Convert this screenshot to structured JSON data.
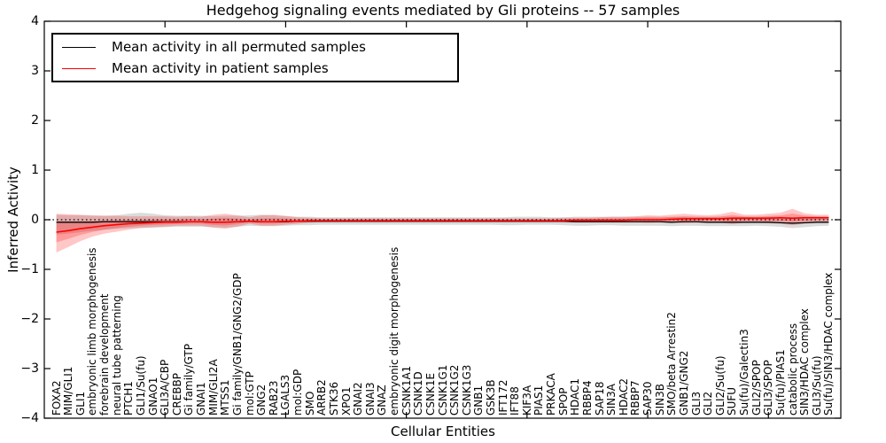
{
  "figure": {
    "title": "Hedgehog signaling events mediated by Gli proteins -- 57 samples",
    "xlabel": "Cellular Entities",
    "ylabel": "Inferred Activity"
  },
  "legend": {
    "items": [
      {
        "label": "Mean activity in all permuted samples",
        "color": "#000000"
      },
      {
        "label": "Mean activity in patient samples",
        "color": "#ff0000"
      }
    ],
    "position": "upper left"
  },
  "chart_data": {
    "type": "line",
    "title": "Hedgehog signaling events mediated by Gli proteins -- 57 samples",
    "xlabel": "Cellular Entities",
    "ylabel": "Inferred Activity",
    "ylim": [
      -4,
      4
    ],
    "yticks": [
      -4,
      -3,
      -2,
      -1,
      0,
      1,
      2,
      3,
      4
    ],
    "xticks": [
      10,
      20,
      30,
      40,
      50,
      60
    ],
    "grid": false,
    "zero_line": {
      "style": "dotted",
      "color": "#000000",
      "value": 0
    },
    "legend_position": "upper left",
    "categories": [
      "FOXA2",
      "MIM/GLI1",
      "GLI1",
      "embryonic limb morphogenesis",
      "forebrain development",
      "neural tube patterning",
      "PTCH1",
      "GLI1/Su(fu)",
      "GNAO1",
      "GLI3A/CBP",
      "CREBBP",
      "Gi family/GTP",
      "GNAI1",
      "MIM/GLI2A",
      "MTSS1",
      "Gi family/GNB1/GNG2/GDP",
      "mol:GTP",
      "GNG2",
      "RAB23",
      "LGALS3",
      "mol:GDP",
      "SMO",
      "ARRB2",
      "STK36",
      "XPO1",
      "GNAI2",
      "GNAI3",
      "GNAZ",
      "embryonic digit morphogenesis",
      "CSNK1A1",
      "CSNK1D",
      "CSNK1E",
      "CSNK1G1",
      "CSNK1G2",
      "CSNK1G3",
      "GNB1",
      "GSK3B",
      "IFT172",
      "IFT88",
      "KIF3A",
      "PIAS1",
      "PRKACA",
      "SPOP",
      "HDAC1",
      "RBBP4",
      "SAP18",
      "SIN3A",
      "HDAC2",
      "RBBP7",
      "SAP30",
      "SIN3B",
      "SMO/beta Arrestin2",
      "GNB1/GNG2",
      "GLI3",
      "GLI2",
      "GLI2/Su(fu)",
      "SUFU",
      "Su(fu)/Galectin3",
      "GLI2/SPOP",
      "GLI3/SPOP",
      "Su(fu)/PIAS1",
      "catabolic process",
      "SIN3/HDAC complex",
      "GLI3/Su(fu)",
      "Su(fu)/SIN3/HDAC complex"
    ],
    "series": [
      {
        "name": "Mean activity in all permuted samples",
        "color": "#000000",
        "line_width": 1.3,
        "band_color": "rgba(110,110,110,0.25)",
        "values": [
          -0.05,
          -0.05,
          -0.05,
          -0.05,
          -0.04,
          -0.04,
          -0.04,
          -0.04,
          -0.04,
          -0.04,
          -0.04,
          -0.04,
          -0.04,
          -0.05,
          -0.05,
          -0.04,
          -0.03,
          -0.04,
          -0.04,
          -0.04,
          -0.03,
          -0.03,
          -0.03,
          -0.03,
          -0.03,
          -0.03,
          -0.03,
          -0.03,
          -0.03,
          -0.03,
          -0.03,
          -0.03,
          -0.03,
          -0.03,
          -0.03,
          -0.03,
          -0.03,
          -0.03,
          -0.03,
          -0.03,
          -0.03,
          -0.03,
          -0.03,
          -0.04,
          -0.04,
          -0.04,
          -0.04,
          -0.04,
          -0.04,
          -0.04,
          -0.04,
          -0.05,
          -0.04,
          -0.04,
          -0.05,
          -0.05,
          -0.05,
          -0.05,
          -0.05,
          -0.05,
          -0.06,
          -0.07,
          -0.06,
          -0.05,
          -0.05
        ],
        "band_upper": [
          0.1,
          0.09,
          0.09,
          0.08,
          0.08,
          0.09,
          0.12,
          0.14,
          0.12,
          0.09,
          0.08,
          0.08,
          0.08,
          0.07,
          0.08,
          0.08,
          0.09,
          0.1,
          0.09,
          0.07,
          0.06,
          0.06,
          0.05,
          0.05,
          0.05,
          0.05,
          0.05,
          0.05,
          0.05,
          0.05,
          0.05,
          0.05,
          0.05,
          0.05,
          0.05,
          0.05,
          0.05,
          0.05,
          0.06,
          0.06,
          0.06,
          0.05,
          0.05,
          0.06,
          0.06,
          0.06,
          0.06,
          0.06,
          0.06,
          0.06,
          0.06,
          0.06,
          0.06,
          0.06,
          0.06,
          0.06,
          0.06,
          0.06,
          0.05,
          0.06,
          0.06,
          0.05,
          0.06,
          0.06,
          0.05
        ],
        "band_lower": [
          -0.3,
          -0.28,
          -0.25,
          -0.22,
          -0.2,
          -0.18,
          -0.17,
          -0.16,
          -0.16,
          -0.15,
          -0.14,
          -0.14,
          -0.14,
          -0.15,
          -0.16,
          -0.14,
          -0.12,
          -0.13,
          -0.13,
          -0.12,
          -0.11,
          -0.11,
          -0.1,
          -0.1,
          -0.1,
          -0.1,
          -0.1,
          -0.1,
          -0.1,
          -0.1,
          -0.1,
          -0.1,
          -0.1,
          -0.1,
          -0.1,
          -0.1,
          -0.1,
          -0.11,
          -0.11,
          -0.1,
          -0.1,
          -0.1,
          -0.11,
          -0.12,
          -0.12,
          -0.11,
          -0.11,
          -0.12,
          -0.12,
          -0.12,
          -0.12,
          -0.13,
          -0.12,
          -0.12,
          -0.13,
          -0.13,
          -0.13,
          -0.13,
          -0.12,
          -0.13,
          -0.14,
          -0.17,
          -0.15,
          -0.13,
          -0.12
        ],
        "inner_band_scale": 0
      },
      {
        "name": "Mean activity in patient samples",
        "color": "#ff0000",
        "line_width": 1.6,
        "band_color": "rgba(255,0,0,0.22)",
        "values": [
          -0.25,
          -0.22,
          -0.18,
          -0.15,
          -0.12,
          -0.1,
          -0.08,
          -0.07,
          -0.06,
          -0.05,
          -0.05,
          -0.04,
          -0.04,
          -0.05,
          -0.05,
          -0.04,
          -0.03,
          -0.04,
          -0.04,
          -0.03,
          -0.03,
          -0.02,
          -0.02,
          -0.02,
          -0.02,
          -0.02,
          -0.02,
          -0.02,
          -0.02,
          -0.02,
          -0.02,
          -0.02,
          -0.02,
          -0.02,
          -0.02,
          -0.02,
          -0.02,
          -0.02,
          -0.02,
          -0.02,
          -0.02,
          -0.02,
          -0.02,
          -0.01,
          -0.01,
          -0.01,
          -0.01,
          -0.01,
          0.0,
          0.0,
          0.0,
          0.01,
          0.02,
          0.02,
          0.02,
          0.02,
          0.03,
          0.03,
          0.03,
          0.03,
          0.04,
          0.03,
          0.04,
          0.04,
          0.04
        ],
        "band_upper": [
          0.12,
          0.11,
          0.1,
          0.09,
          0.08,
          0.08,
          0.07,
          0.07,
          0.07,
          0.07,
          0.06,
          0.07,
          0.06,
          0.1,
          0.12,
          0.09,
          0.05,
          0.09,
          0.1,
          0.08,
          0.05,
          0.04,
          0.03,
          0.03,
          0.03,
          0.03,
          0.03,
          0.03,
          0.03,
          0.03,
          0.03,
          0.03,
          0.03,
          0.03,
          0.03,
          0.03,
          0.03,
          0.03,
          0.03,
          0.03,
          0.03,
          0.03,
          0.04,
          0.04,
          0.04,
          0.05,
          0.06,
          0.06,
          0.07,
          0.09,
          0.08,
          0.1,
          0.12,
          0.1,
          0.09,
          0.11,
          0.16,
          0.1,
          0.1,
          0.12,
          0.14,
          0.22,
          0.13,
          0.1,
          0.1
        ],
        "band_lower": [
          -0.66,
          -0.55,
          -0.43,
          -0.34,
          -0.28,
          -0.24,
          -0.2,
          -0.17,
          -0.15,
          -0.14,
          -0.12,
          -0.12,
          -0.12,
          -0.16,
          -0.18,
          -0.14,
          -0.08,
          -0.12,
          -0.12,
          -0.1,
          -0.08,
          -0.06,
          -0.05,
          -0.05,
          -0.05,
          -0.05,
          -0.05,
          -0.05,
          -0.05,
          -0.05,
          -0.05,
          -0.05,
          -0.05,
          -0.05,
          -0.05,
          -0.05,
          -0.05,
          -0.05,
          -0.05,
          -0.05,
          -0.05,
          -0.05,
          -0.05,
          -0.05,
          -0.05,
          -0.05,
          -0.05,
          -0.05,
          -0.05,
          -0.06,
          -0.05,
          -0.06,
          -0.07,
          -0.06,
          -0.06,
          -0.06,
          -0.09,
          -0.06,
          -0.06,
          -0.07,
          -0.08,
          -0.11,
          -0.08,
          -0.06,
          -0.05
        ],
        "inner_band_scale": 0.5
      }
    ]
  }
}
